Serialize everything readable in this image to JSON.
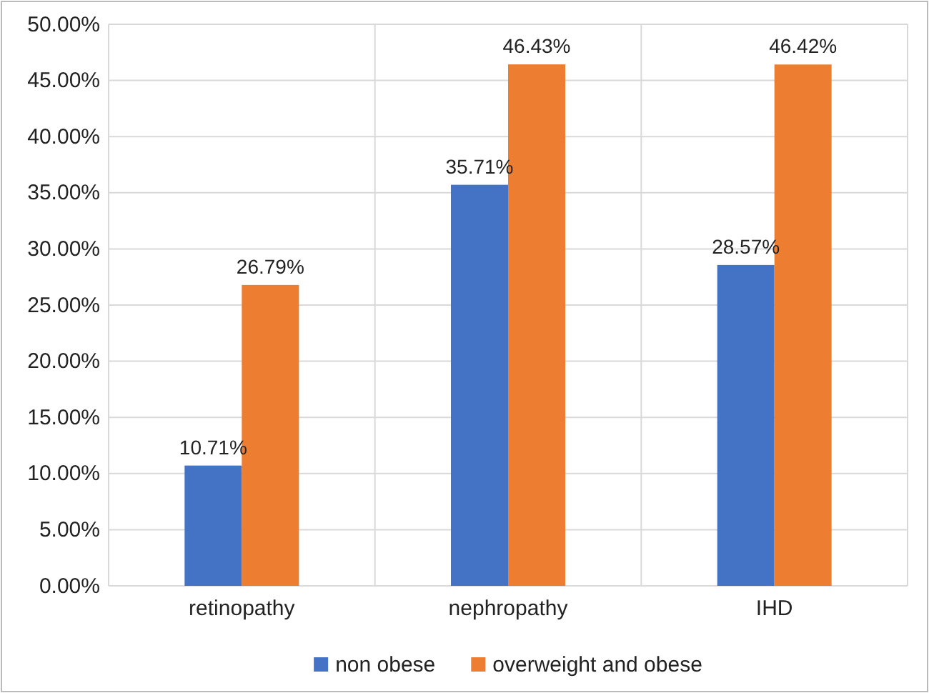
{
  "chart_data": {
    "type": "bar",
    "categories": [
      "retinopathy",
      "nephropathy",
      "IHD"
    ],
    "series": [
      {
        "name": "non obese",
        "color": "#4472c4",
        "values": [
          10.71,
          35.71,
          28.57
        ],
        "value_labels": [
          "10.71%",
          "35.71%",
          "28.57%"
        ]
      },
      {
        "name": "overweight and obese",
        "color": "#ed7d31",
        "values": [
          26.79,
          46.43,
          46.42
        ],
        "value_labels": [
          "26.79%",
          "46.43%",
          "46.42%"
        ]
      }
    ],
    "ylim": [
      0,
      50
    ],
    "yticks": [
      {
        "value": 0,
        "label": "0.00%"
      },
      {
        "value": 5,
        "label": "5.00%"
      },
      {
        "value": 10,
        "label": "10.00%"
      },
      {
        "value": 15,
        "label": "15.00%"
      },
      {
        "value": 20,
        "label": "20.00%"
      },
      {
        "value": 25,
        "label": "25.00%"
      },
      {
        "value": 30,
        "label": "30.00%"
      },
      {
        "value": 35,
        "label": "35.00%"
      },
      {
        "value": 40,
        "label": "40.00%"
      },
      {
        "value": 45,
        "label": "45.00%"
      },
      {
        "value": 50,
        "label": "50.00%"
      }
    ],
    "grid": true,
    "legend": "bottom"
  }
}
